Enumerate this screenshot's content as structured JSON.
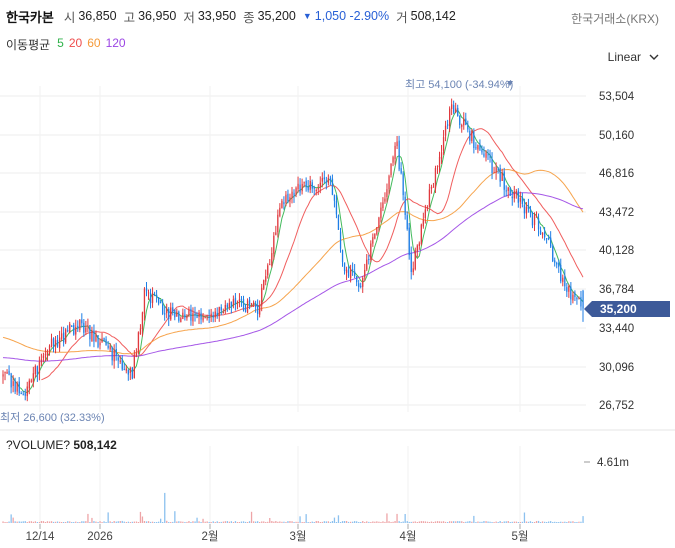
{
  "header": {
    "stock_name": "한국카본",
    "open_label": "시",
    "open": "36,850",
    "high_label": "고",
    "high": "36,950",
    "low_label": "저",
    "low": "33,950",
    "close_label": "종",
    "close": "35,200",
    "change": "1,050 -2.90%",
    "volume_label": "거",
    "volume": "508,142",
    "exchange": "한국거래소(KRX)"
  },
  "moving_averages": {
    "title": "이동평균",
    "items": [
      {
        "label": "5",
        "color": "#2fb24a"
      },
      {
        "label": "20",
        "color": "#ee4d4d"
      },
      {
        "label": "60",
        "color": "#f59a3a"
      },
      {
        "label": "120",
        "color": "#9b45e4"
      }
    ]
  },
  "scale_selector": {
    "label": "Linear"
  },
  "colors": {
    "up": "#e0393e",
    "down": "#1e7ee6",
    "price_tag": "#3d5a99",
    "volume": "#8cc1ef",
    "volume_up": "#eea5a7"
  },
  "chart_data": {
    "type": "candlestick",
    "price_axis": {
      "ticks": [
        "53,504",
        "50,160",
        "46,816",
        "43,472",
        "40,128",
        "36,784",
        "33,440",
        "30,096",
        "26,752"
      ],
      "ylim": [
        25500,
        55500
      ]
    },
    "current_price_label": "35,200",
    "max_annotation": "최고 54,100 (-34.94%)",
    "min_annotation": "최저 26,600 (32.33%)",
    "x_ticks": [
      "12/14",
      "2026",
      "2월",
      "3월",
      "4월",
      "5월"
    ],
    "volume_title": "?VOLUME?",
    "volume_value": "508,142",
    "volume_axis_label": "4.61m",
    "volume_max": 4610000
  }
}
